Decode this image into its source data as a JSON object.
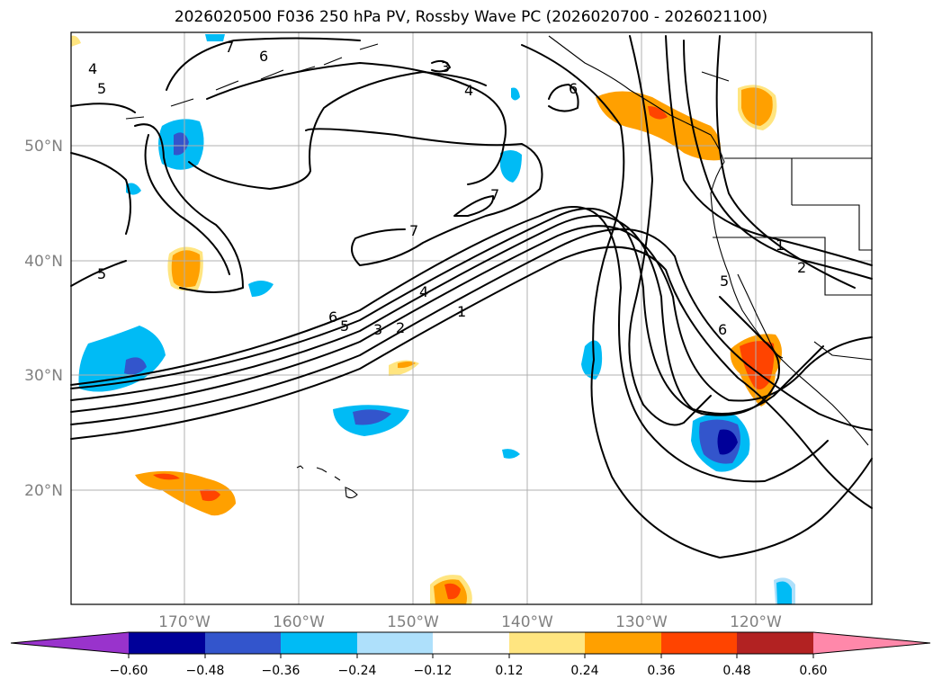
{
  "title": "2026020500 F036 250 hPa PV, Rossby Wave PC (2026020700 - 2026021100)",
  "map": {
    "lon_labels": [
      "170°W",
      "160°W",
      "150°W",
      "140°W",
      "130°W",
      "120°W"
    ],
    "lat_labels": [
      "50°N",
      "40°N",
      "30°N",
      "20°N"
    ],
    "contour_labels": [
      "1",
      "2",
      "3",
      "4",
      "5",
      "6",
      "7"
    ]
  },
  "colorbar": {
    "ticks": [
      "−0.60",
      "−0.48",
      "−0.36",
      "−0.24",
      "−0.12",
      "0.12",
      "0.24",
      "0.36",
      "0.48",
      "0.60"
    ],
    "colors": [
      "#9933cc",
      "#000099",
      "#3355cc",
      "#00bbf5",
      "#aee0fb",
      "#ffffff",
      "#ffe580",
      "#ffa000",
      "#ff4400",
      "#b22222",
      "#ff88aa"
    ]
  },
  "colors": {
    "grid": "#b0b0b0",
    "tick_text": "#808080"
  }
}
